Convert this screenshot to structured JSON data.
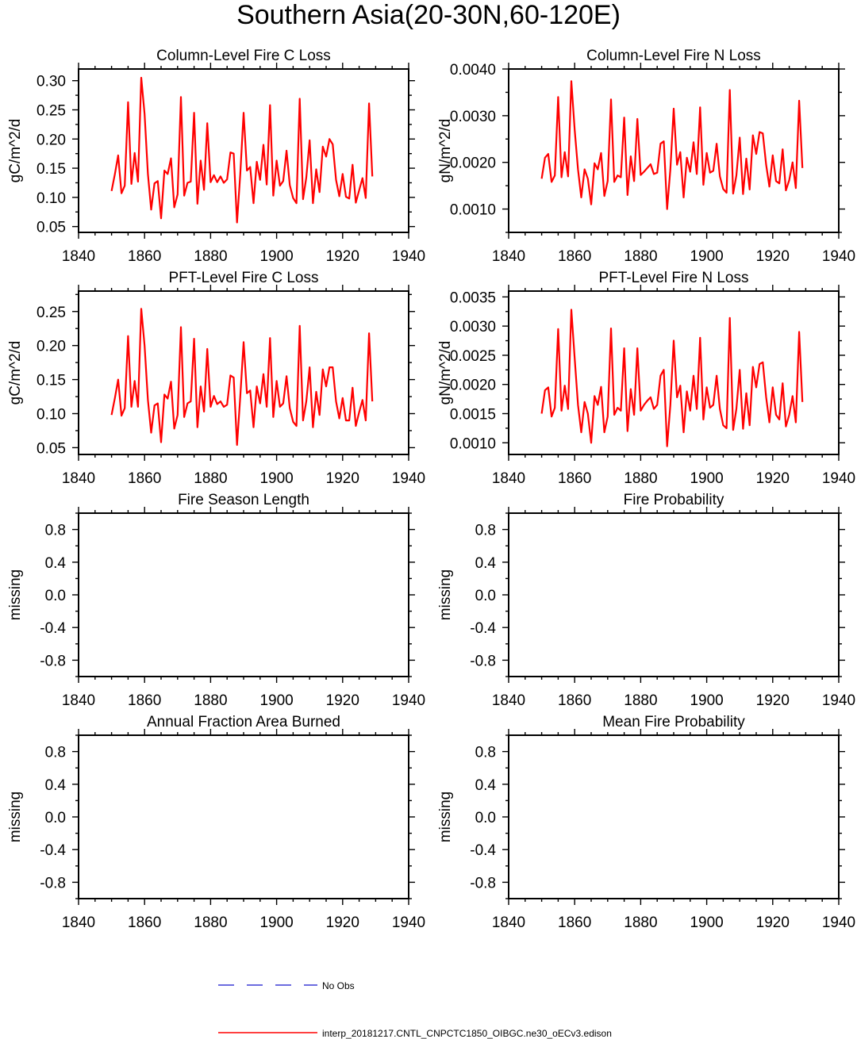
{
  "figure": {
    "title": "Southern Asia(20-30N,60-120E)"
  },
  "legend": {
    "entries": [
      {
        "label": "No Obs",
        "color": "#3b3bd6",
        "style": "dashed"
      },
      {
        "label": "interp_20181217.CNTL_CNPCTC1850_OIBGC.ne30_oECv3.edison",
        "color": "#ff0000",
        "style": "solid"
      }
    ]
  },
  "chart_data": [
    {
      "type": "line",
      "title": "Column-Level Fire C Loss",
      "ylabel": "gC/m^2/d",
      "xlim": [
        1840,
        1940
      ],
      "ylim": [
        0.04,
        0.32
      ],
      "xticks": [
        1840,
        1860,
        1880,
        1900,
        1920,
        1940
      ],
      "xtick_labels": [
        "1840",
        "1860",
        "1880",
        "1900",
        "1920",
        "1940"
      ],
      "yticks": [
        0.05,
        0.1,
        0.15,
        0.2,
        0.25,
        0.3
      ],
      "ytick_labels": [
        "0.05",
        "0.10",
        "0.15",
        "0.20",
        "0.25",
        "0.30"
      ],
      "x_start": 1850,
      "series": [
        {
          "color": "#ff0000",
          "values": [
            0.111,
            0.14,
            0.172,
            0.107,
            0.12,
            0.263,
            0.123,
            0.176,
            0.127,
            0.305,
            0.243,
            0.14,
            0.079,
            0.124,
            0.128,
            0.064,
            0.146,
            0.14,
            0.167,
            0.083,
            0.105,
            0.272,
            0.103,
            0.125,
            0.127,
            0.245,
            0.089,
            0.163,
            0.113,
            0.227,
            0.126,
            0.138,
            0.126,
            0.136,
            0.125,
            0.131,
            0.177,
            0.175,
            0.057,
            0.14,
            0.245,
            0.146,
            0.152,
            0.09,
            0.161,
            0.13,
            0.19,
            0.122,
            0.258,
            0.103,
            0.163,
            0.12,
            0.128,
            0.18,
            0.121,
            0.099,
            0.09,
            0.269,
            0.097,
            0.134,
            0.198,
            0.09,
            0.148,
            0.109,
            0.187,
            0.17,
            0.2,
            0.191,
            0.13,
            0.102,
            0.14,
            0.101,
            0.098,
            0.156,
            0.091,
            0.112,
            0.133,
            0.099,
            0.261,
            0.136
          ]
        }
      ]
    },
    {
      "type": "line",
      "title": "Column-Level Fire N Loss",
      "ylabel": "gN/m^2/d",
      "xlim": [
        1840,
        1940
      ],
      "ylim": [
        0.0005,
        0.004
      ],
      "xticks": [
        1840,
        1860,
        1880,
        1900,
        1920,
        1940
      ],
      "xtick_labels": [
        "1840",
        "1860",
        "1880",
        "1900",
        "1920",
        "1940"
      ],
      "yticks": [
        0.001,
        0.002,
        0.003,
        0.004
      ],
      "ytick_labels": [
        "0.0010",
        "0.0020",
        "0.0030",
        "0.0040"
      ],
      "x_start": 1850,
      "series": [
        {
          "color": "#ff0000",
          "values": [
            0.00165,
            0.0021,
            0.00218,
            0.00158,
            0.00172,
            0.0034,
            0.00168,
            0.00222,
            0.0017,
            0.00374,
            0.0027,
            0.00185,
            0.00125,
            0.00185,
            0.00165,
            0.0011,
            0.00198,
            0.00185,
            0.0022,
            0.00128,
            0.0016,
            0.00335,
            0.00158,
            0.00172,
            0.00168,
            0.00296,
            0.0013,
            0.00213,
            0.0016,
            0.00293,
            0.00173,
            0.0018,
            0.00188,
            0.00196,
            0.00175,
            0.00178,
            0.0024,
            0.00245,
            0.001,
            0.00185,
            0.00315,
            0.00195,
            0.00222,
            0.00125,
            0.0021,
            0.0018,
            0.00243,
            0.00175,
            0.00318,
            0.00152,
            0.0022,
            0.00178,
            0.00182,
            0.0024,
            0.0017,
            0.00143,
            0.00135,
            0.00355,
            0.00133,
            0.00172,
            0.00253,
            0.00132,
            0.00208,
            0.00142,
            0.00258,
            0.00218,
            0.00265,
            0.00262,
            0.00195,
            0.00148,
            0.00215,
            0.0016,
            0.00155,
            0.00228,
            0.0014,
            0.00162,
            0.002,
            0.00145,
            0.00332,
            0.00188
          ]
        }
      ]
    },
    {
      "type": "line",
      "title": "PFT-Level Fire C Loss",
      "ylabel": "gC/m^2/d",
      "xlim": [
        1840,
        1940
      ],
      "ylim": [
        0.04,
        0.28
      ],
      "xticks": [
        1840,
        1860,
        1880,
        1900,
        1920,
        1940
      ],
      "xtick_labels": [
        "1840",
        "1860",
        "1880",
        "1900",
        "1920",
        "1940"
      ],
      "yticks": [
        0.05,
        0.1,
        0.15,
        0.2,
        0.25
      ],
      "ytick_labels": [
        "0.05",
        "0.10",
        "0.15",
        "0.20",
        "0.25"
      ],
      "x_start": 1850,
      "series": [
        {
          "color": "#ff0000",
          "values": [
            0.098,
            0.123,
            0.15,
            0.097,
            0.108,
            0.214,
            0.11,
            0.148,
            0.11,
            0.254,
            0.2,
            0.12,
            0.072,
            0.112,
            0.115,
            0.058,
            0.128,
            0.122,
            0.147,
            0.078,
            0.098,
            0.227,
            0.095,
            0.115,
            0.118,
            0.21,
            0.08,
            0.14,
            0.103,
            0.195,
            0.11,
            0.126,
            0.114,
            0.118,
            0.11,
            0.113,
            0.156,
            0.153,
            0.054,
            0.125,
            0.205,
            0.13,
            0.134,
            0.08,
            0.14,
            0.115,
            0.158,
            0.11,
            0.211,
            0.095,
            0.148,
            0.11,
            0.115,
            0.155,
            0.108,
            0.088,
            0.082,
            0.229,
            0.09,
            0.118,
            0.168,
            0.08,
            0.132,
            0.098,
            0.165,
            0.14,
            0.168,
            0.168,
            0.118,
            0.093,
            0.123,
            0.09,
            0.09,
            0.138,
            0.082,
            0.102,
            0.12,
            0.09,
            0.218,
            0.118
          ]
        }
      ]
    },
    {
      "type": "line",
      "title": "PFT-Level Fire N Loss",
      "ylabel": "gN/m^2/d",
      "xlim": [
        1840,
        1940
      ],
      "ylim": [
        0.0008,
        0.0036
      ],
      "xticks": [
        1840,
        1860,
        1880,
        1900,
        1920,
        1940
      ],
      "xtick_labels": [
        "1840",
        "1860",
        "1880",
        "1900",
        "1920",
        "1940"
      ],
      "yticks": [
        0.001,
        0.0015,
        0.002,
        0.0025,
        0.003,
        0.0035
      ],
      "ytick_labels": [
        "0.0010",
        "0.0015",
        "0.0020",
        "0.0025",
        "0.0030",
        "0.0035"
      ],
      "x_start": 1850,
      "series": [
        {
          "color": "#ff0000",
          "values": [
            0.0015,
            0.0019,
            0.00195,
            0.00145,
            0.0016,
            0.00295,
            0.00155,
            0.00198,
            0.00158,
            0.00328,
            0.00245,
            0.00165,
            0.00118,
            0.0017,
            0.0015,
            0.001,
            0.0018,
            0.00165,
            0.00196,
            0.00118,
            0.00145,
            0.00296,
            0.00148,
            0.0016,
            0.00155,
            0.00262,
            0.0012,
            0.00192,
            0.00148,
            0.00262,
            0.00155,
            0.00165,
            0.00172,
            0.00178,
            0.00158,
            0.00165,
            0.00215,
            0.00225,
            0.00094,
            0.00165,
            0.00275,
            0.00178,
            0.00198,
            0.00118,
            0.00188,
            0.00155,
            0.00215,
            0.00158,
            0.0028,
            0.0014,
            0.00195,
            0.0016,
            0.00165,
            0.00215,
            0.00158,
            0.0013,
            0.00125,
            0.00314,
            0.00122,
            0.00158,
            0.00225,
            0.00124,
            0.00185,
            0.0013,
            0.0023,
            0.00195,
            0.00235,
            0.00238,
            0.00178,
            0.00135,
            0.00195,
            0.00148,
            0.0014,
            0.00202,
            0.00128,
            0.00148,
            0.0018,
            0.00135,
            0.0029,
            0.0017
          ]
        }
      ]
    },
    {
      "type": "line",
      "title": "Fire Season Length",
      "ylabel": "missing",
      "xlim": [
        1840,
        1940
      ],
      "ylim": [
        -1,
        1
      ],
      "xticks": [
        1840,
        1860,
        1880,
        1900,
        1920,
        1940
      ],
      "xtick_labels": [
        "1840",
        "1860",
        "1880",
        "1900",
        "1920",
        "1940"
      ],
      "yticks": [
        0.8,
        0.4,
        0.0,
        -0.4,
        -0.8
      ],
      "ytick_labels": [
        "0.8",
        "0.4",
        "0.0",
        "-0.4",
        "-0.8"
      ],
      "series": []
    },
    {
      "type": "line",
      "title": "Fire Probability",
      "ylabel": "missing",
      "xlim": [
        1840,
        1940
      ],
      "ylim": [
        -1,
        1
      ],
      "xticks": [
        1840,
        1860,
        1880,
        1900,
        1920,
        1940
      ],
      "xtick_labels": [
        "1840",
        "1860",
        "1880",
        "1900",
        "1920",
        "1940"
      ],
      "yticks": [
        0.8,
        0.4,
        0.0,
        -0.4,
        -0.8
      ],
      "ytick_labels": [
        "0.8",
        "0.4",
        "0.0",
        "-0.4",
        "-0.8"
      ],
      "series": []
    },
    {
      "type": "line",
      "title": "Annual Fraction Area Burned",
      "ylabel": "missing",
      "xlim": [
        1840,
        1940
      ],
      "ylim": [
        -1,
        1
      ],
      "xticks": [
        1840,
        1860,
        1880,
        1900,
        1920,
        1940
      ],
      "xtick_labels": [
        "1840",
        "1860",
        "1880",
        "1900",
        "1920",
        "1940"
      ],
      "yticks": [
        0.8,
        0.4,
        0.0,
        -0.4,
        -0.8
      ],
      "ytick_labels": [
        "0.8",
        "0.4",
        "0.0",
        "-0.4",
        "-0.8"
      ],
      "series": []
    },
    {
      "type": "line",
      "title": "Mean Fire Probability",
      "ylabel": "missing",
      "xlim": [
        1840,
        1940
      ],
      "ylim": [
        -1,
        1
      ],
      "xticks": [
        1840,
        1860,
        1880,
        1900,
        1920,
        1940
      ],
      "xtick_labels": [
        "1840",
        "1860",
        "1880",
        "1900",
        "1920",
        "1940"
      ],
      "yticks": [
        0.8,
        0.4,
        0.0,
        -0.4,
        -0.8
      ],
      "ytick_labels": [
        "0.8",
        "0.4",
        "0.0",
        "-0.4",
        "-0.8"
      ],
      "series": []
    }
  ]
}
